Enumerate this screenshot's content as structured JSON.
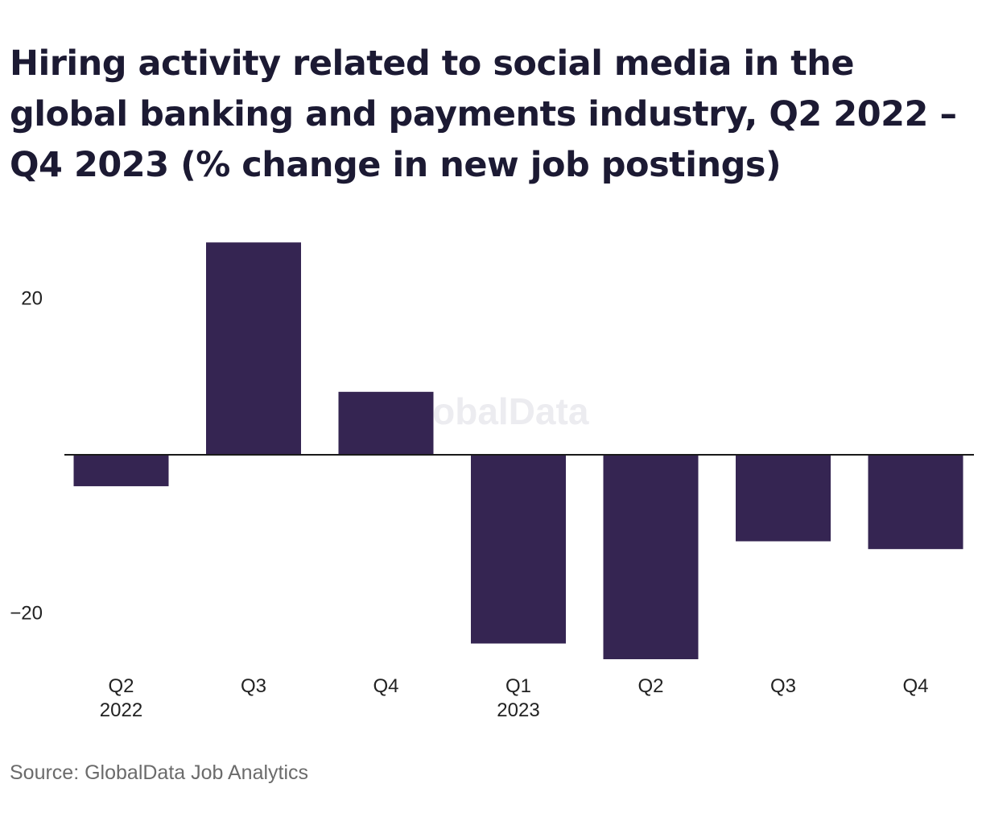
{
  "chart_data": {
    "type": "bar",
    "title": "Hiring activity related to social media in the global banking and payments industry, Q2 2022 – Q4 2023 (% change in new job postings)",
    "categories": [
      {
        "label": "Q2",
        "sublabel": "2022"
      },
      {
        "label": "Q3",
        "sublabel": ""
      },
      {
        "label": "Q4",
        "sublabel": ""
      },
      {
        "label": "Q1",
        "sublabel": "2023"
      },
      {
        "label": "Q2",
        "sublabel": ""
      },
      {
        "label": "Q3",
        "sublabel": ""
      },
      {
        "label": "Q4",
        "sublabel": ""
      }
    ],
    "values": [
      -4,
      27,
      8,
      -24,
      -26,
      -11,
      -12
    ],
    "ylim": [
      -26,
      27
    ],
    "yticks": [
      20,
      -20
    ],
    "ytick_labels": [
      "20",
      "−20"
    ],
    "bar_color": "#352552",
    "grid": false,
    "xlabel": "",
    "ylabel": ""
  },
  "watermark": "GlobalData",
  "source": "Source: GlobalData Job Analytics"
}
